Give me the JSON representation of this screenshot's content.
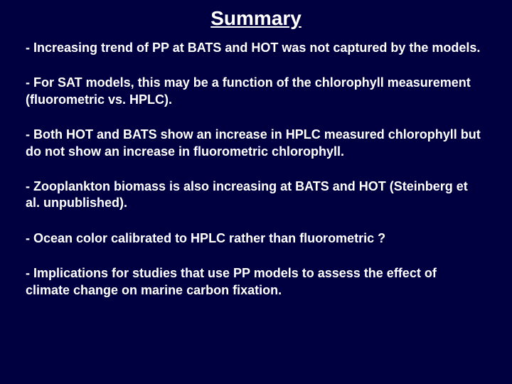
{
  "slide": {
    "title": "Summary",
    "bullets": [
      " - Increasing trend of PP at BATS and HOT was not captured by the models.",
      " - For SAT models, this may be a function of the chlorophyll measurement (fluorometric vs. HPLC).",
      " - Both HOT and BATS show an increase in HPLC measured chlorophyll but do not show an increase in fluorometric chlorophyll.",
      " - Zooplankton biomass is also increasing at BATS and HOT (Steinberg et al. unpublished).",
      " - Ocean color calibrated to HPLC rather than fluorometric ?",
      " - Implications for studies that use PP models to assess the effect of climate change on marine carbon fixation."
    ],
    "background_color": "#000041",
    "text_color": "#ffffff",
    "title_fontsize": 28,
    "bullet_fontsize": 18,
    "font_family": "Arial",
    "font_weight": "bold"
  }
}
